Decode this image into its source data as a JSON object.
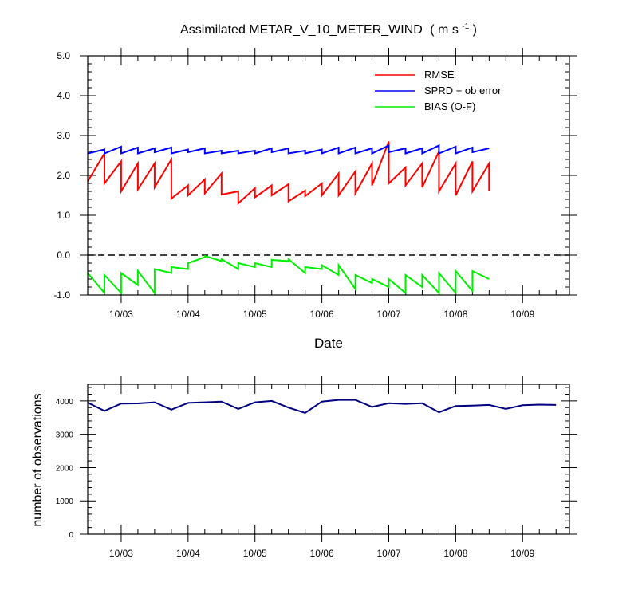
{
  "chart_data": [
    {
      "type": "line",
      "title": "Assimilated METAR_V_10_METER_WIND",
      "title_units": "( m s",
      "title_units_sup": "-1",
      "title_units_end": " )",
      "xlabel": "Date",
      "ylabel": "",
      "xlim": [
        0,
        7.2
      ],
      "ylim": [
        -1.0,
        5.0
      ],
      "x_ticks": [
        0.5,
        1.5,
        2.5,
        3.5,
        4.5,
        5.5,
        6.5
      ],
      "x_tick_labels": [
        "10/03",
        "10/04",
        "10/05",
        "10/06",
        "10/07",
        "10/08",
        "10/09"
      ],
      "y_ticks": [
        -1.0,
        0.0,
        1.0,
        2.0,
        3.0,
        4.0,
        5.0
      ],
      "y_tick_labels": [
        "-1.0",
        "0.0",
        "1.0",
        "2.0",
        "3.0",
        "4.0",
        "5.0"
      ],
      "reference_line": 0.0,
      "legend_position": "top-right",
      "series": [
        {
          "name": "RMSE",
          "color": "#ff0000",
          "points": [
            [
              0,
              1.85
            ],
            [
              0.25,
              2.55
            ],
            [
              0.25,
              1.8
            ],
            [
              0.5,
              2.35
            ],
            [
              0.5,
              1.6
            ],
            [
              0.75,
              2.3
            ],
            [
              0.75,
              1.65
            ],
            [
              1.0,
              2.3
            ],
            [
              1.0,
              1.7
            ],
            [
              1.25,
              2.4
            ],
            [
              1.25,
              1.42
            ],
            [
              1.5,
              1.75
            ],
            [
              1.5,
              1.5
            ],
            [
              1.75,
              1.9
            ],
            [
              1.75,
              1.55
            ],
            [
              2.0,
              2.05
            ],
            [
              2.0,
              1.52
            ],
            [
              2.25,
              1.6
            ],
            [
              2.25,
              1.3
            ],
            [
              2.5,
              1.68
            ],
            [
              2.5,
              1.45
            ],
            [
              2.75,
              1.75
            ],
            [
              2.75,
              1.5
            ],
            [
              3.0,
              1.78
            ],
            [
              3.0,
              1.35
            ],
            [
              3.25,
              1.62
            ],
            [
              3.25,
              1.48
            ],
            [
              3.5,
              1.8
            ],
            [
              3.5,
              1.5
            ],
            [
              3.75,
              2.05
            ],
            [
              3.75,
              1.5
            ],
            [
              4.0,
              2.1
            ],
            [
              4.0,
              1.55
            ],
            [
              4.25,
              2.3
            ],
            [
              4.25,
              1.75
            ],
            [
              4.5,
              2.85
            ],
            [
              4.5,
              1.8
            ],
            [
              4.75,
              2.2
            ],
            [
              4.75,
              1.75
            ],
            [
              5.0,
              2.3
            ],
            [
              5.0,
              1.7
            ],
            [
              5.25,
              2.6
            ],
            [
              5.25,
              1.6
            ],
            [
              5.5,
              2.3
            ],
            [
              5.5,
              1.5
            ],
            [
              5.75,
              2.35
            ],
            [
              5.75,
              1.6
            ],
            [
              6.0,
              2.3
            ],
            [
              6.0,
              1.6
            ]
          ]
        },
        {
          "name": "SPRD + ob error",
          "color": "#0000ff",
          "points": [
            [
              0,
              2.55
            ],
            [
              0.25,
              2.65
            ],
            [
              0.25,
              2.55
            ],
            [
              0.5,
              2.72
            ],
            [
              0.5,
              2.55
            ],
            [
              0.75,
              2.7
            ],
            [
              0.75,
              2.55
            ],
            [
              1.0,
              2.68
            ],
            [
              1.0,
              2.58
            ],
            [
              1.25,
              2.7
            ],
            [
              1.25,
              2.55
            ],
            [
              1.5,
              2.65
            ],
            [
              1.5,
              2.58
            ],
            [
              1.75,
              2.68
            ],
            [
              1.75,
              2.55
            ],
            [
              2.0,
              2.62
            ],
            [
              2.0,
              2.55
            ],
            [
              2.25,
              2.62
            ],
            [
              2.25,
              2.55
            ],
            [
              2.5,
              2.62
            ],
            [
              2.5,
              2.55
            ],
            [
              2.75,
              2.68
            ],
            [
              2.75,
              2.58
            ],
            [
              3.0,
              2.68
            ],
            [
              3.0,
              2.55
            ],
            [
              3.25,
              2.62
            ],
            [
              3.25,
              2.55
            ],
            [
              3.5,
              2.65
            ],
            [
              3.5,
              2.55
            ],
            [
              3.75,
              2.7
            ],
            [
              3.75,
              2.55
            ],
            [
              4.0,
              2.7
            ],
            [
              4.0,
              2.55
            ],
            [
              4.25,
              2.68
            ],
            [
              4.25,
              2.55
            ],
            [
              4.5,
              2.75
            ],
            [
              4.5,
              2.58
            ],
            [
              4.75,
              2.68
            ],
            [
              4.75,
              2.55
            ],
            [
              5.0,
              2.68
            ],
            [
              5.0,
              2.55
            ],
            [
              5.25,
              2.75
            ],
            [
              5.25,
              2.55
            ],
            [
              5.5,
              2.72
            ],
            [
              5.5,
              2.55
            ],
            [
              5.75,
              2.7
            ],
            [
              5.75,
              2.58
            ],
            [
              6.0,
              2.68
            ]
          ]
        },
        {
          "name": "BIAS (O-F)",
          "color": "#00ee00",
          "points": [
            [
              0,
              -0.45
            ],
            [
              0.25,
              -0.95
            ],
            [
              0.25,
              -0.5
            ],
            [
              0.5,
              -0.95
            ],
            [
              0.5,
              -0.45
            ],
            [
              0.75,
              -0.75
            ],
            [
              0.75,
              -0.4
            ],
            [
              1.0,
              -0.95
            ],
            [
              1.0,
              -0.35
            ],
            [
              1.25,
              -0.45
            ],
            [
              1.25,
              -0.3
            ],
            [
              1.5,
              -0.35
            ],
            [
              1.5,
              -0.2
            ],
            [
              1.75,
              -0.05
            ],
            [
              1.75,
              -0.02
            ],
            [
              2.0,
              -0.15
            ],
            [
              2.0,
              -0.1
            ],
            [
              2.25,
              -0.35
            ],
            [
              2.25,
              -0.2
            ],
            [
              2.5,
              -0.3
            ],
            [
              2.5,
              -0.2
            ],
            [
              2.75,
              -0.3
            ],
            [
              2.75,
              -0.12
            ],
            [
              3.0,
              -0.15
            ],
            [
              3.0,
              -0.1
            ],
            [
              3.25,
              -0.45
            ],
            [
              3.25,
              -0.3
            ],
            [
              3.5,
              -0.35
            ],
            [
              3.5,
              -0.25
            ],
            [
              3.75,
              -0.5
            ],
            [
              3.75,
              -0.25
            ],
            [
              4.0,
              -0.85
            ],
            [
              4.0,
              -0.5
            ],
            [
              4.25,
              -0.7
            ],
            [
              4.25,
              -0.6
            ],
            [
              4.5,
              -0.8
            ],
            [
              4.5,
              -0.6
            ],
            [
              4.75,
              -0.95
            ],
            [
              4.75,
              -0.5
            ],
            [
              5.0,
              -0.8
            ],
            [
              5.0,
              -0.5
            ],
            [
              5.25,
              -0.95
            ],
            [
              5.25,
              -0.45
            ],
            [
              5.5,
              -0.95
            ],
            [
              5.5,
              -0.4
            ],
            [
              5.75,
              -0.9
            ],
            [
              5.75,
              -0.4
            ],
            [
              6.0,
              -0.6
            ]
          ]
        }
      ]
    },
    {
      "type": "line",
      "title": "",
      "xlabel": "",
      "ylabel": "number of observations",
      "xlim": [
        0,
        7.2
      ],
      "ylim": [
        0,
        4500
      ],
      "x_ticks": [
        0.5,
        1.5,
        2.5,
        3.5,
        4.5,
        5.5,
        6.5
      ],
      "x_tick_labels": [
        "10/03",
        "10/04",
        "10/05",
        "10/06",
        "10/07",
        "10/08",
        "10/09"
      ],
      "y_ticks": [
        0,
        1000,
        2000,
        3000,
        4000
      ],
      "y_tick_labels": [
        "0",
        "1000",
        "2000",
        "3000",
        "4000"
      ],
      "series": [
        {
          "color": "#000080",
          "points": [
            [
              0,
              3950
            ],
            [
              0.25,
              3700
            ],
            [
              0.5,
              3920
            ],
            [
              0.75,
              3925
            ],
            [
              1.0,
              3960
            ],
            [
              1.25,
              3740
            ],
            [
              1.5,
              3940
            ],
            [
              1.75,
              3960
            ],
            [
              2.0,
              3980
            ],
            [
              2.25,
              3760
            ],
            [
              2.5,
              3960
            ],
            [
              2.75,
              4000
            ],
            [
              3.0,
              3800
            ],
            [
              3.25,
              3640
            ],
            [
              3.5,
              3980
            ],
            [
              3.75,
              4030
            ],
            [
              4.0,
              4030
            ],
            [
              4.25,
              3820
            ],
            [
              4.5,
              3930
            ],
            [
              4.75,
              3910
            ],
            [
              5.0,
              3930
            ],
            [
              5.25,
              3660
            ],
            [
              5.5,
              3850
            ],
            [
              5.75,
              3860
            ],
            [
              6.0,
              3880
            ],
            [
              6.25,
              3760
            ],
            [
              6.5,
              3870
            ],
            [
              6.75,
              3890
            ],
            [
              7.0,
              3880
            ]
          ]
        }
      ]
    }
  ]
}
